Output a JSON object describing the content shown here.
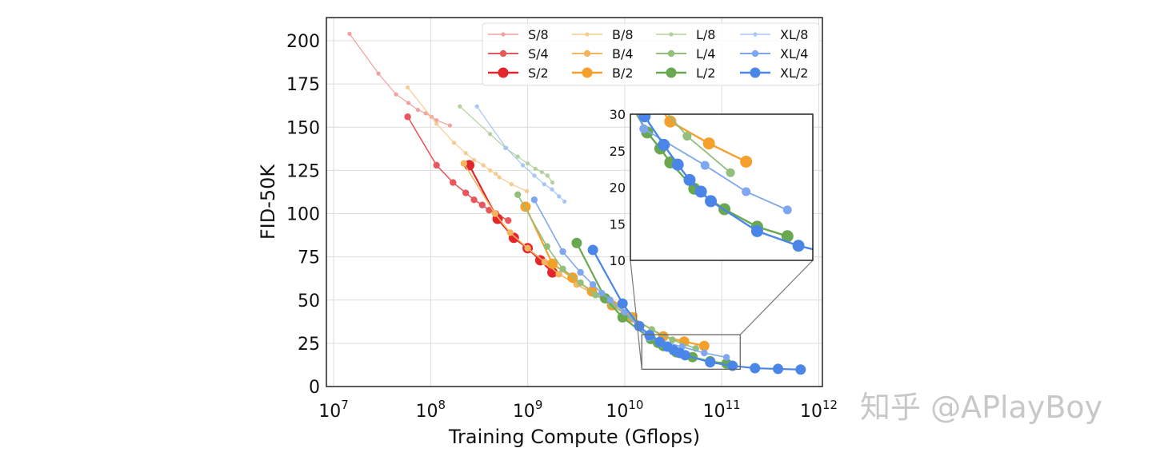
{
  "chart_data": {
    "type": "line",
    "title": "",
    "xlabel": "Training Compute (Gflops)",
    "ylabel": "FID-50K",
    "xscale": "log",
    "xlim": [
      10000000.0,
      1000000000000.0
    ],
    "ylim": [
      0,
      212
    ],
    "x_ticks": [
      {
        "base": "10",
        "exp": "7"
      },
      {
        "base": "10",
        "exp": "8"
      },
      {
        "base": "10",
        "exp": "9"
      },
      {
        "base": "10",
        "exp": "10"
      },
      {
        "base": "10",
        "exp": "11"
      },
      {
        "base": "10",
        "exp": "12"
      }
    ],
    "y_ticks": [
      "0",
      "25",
      "50",
      "75",
      "100",
      "125",
      "150",
      "175",
      "200"
    ],
    "grid": true,
    "legend": {
      "placement": "top-right",
      "columns": 4
    },
    "inset": {
      "xlim": [
        15000000000.0,
        155000000000.0
      ],
      "ylim": [
        10,
        30
      ],
      "y_ticks": [
        "10",
        "15",
        "20",
        "25",
        "30"
      ],
      "placement": "right"
    },
    "series": [
      {
        "name": "S/8",
        "color": "#f2a0a0",
        "size": "small",
        "x": [
          14600000.0,
          29000000.0,
          44000000.0,
          59000000.0,
          74000000.0,
          89000000.0,
          102000000.0,
          115000000.0,
          158000000.0
        ],
        "y": [
          204,
          181,
          169,
          164,
          160,
          158,
          156,
          154,
          151
        ]
      },
      {
        "name": "S/4",
        "color": "#e8575c",
        "size": "medium",
        "x": [
          58000000.0,
          115000000.0,
          170000000.0,
          230000000.0,
          280000000.0,
          340000000.0,
          400000000.0,
          470000000.0,
          630000000.0
        ],
        "y": [
          156,
          128,
          118,
          112,
          108,
          105,
          102,
          100,
          96
        ]
      },
      {
        "name": "S/2",
        "color": "#e3262c",
        "size": "large",
        "x": [
          250000000.0,
          490000000.0,
          720000000.0,
          1000000000.0,
          1350000000.0,
          1800000000.0
        ],
        "y": [
          128,
          97,
          86,
          80,
          73,
          66
        ]
      },
      {
        "name": "B/8",
        "color": "#f6cb92",
        "size": "small",
        "x": [
          58000000.0,
          115000000.0,
          174000000.0,
          230000000.0,
          280000000.0,
          350000000.0,
          410000000.0,
          470000000.0,
          510000000.0,
          680000000.0,
          980000000.0
        ],
        "y": [
          173,
          152,
          141,
          135,
          131,
          128,
          125,
          123,
          121,
          117,
          113
        ]
      },
      {
        "name": "B/4",
        "color": "#f5b45e",
        "size": "medium",
        "x": [
          220000000.0,
          460000000.0,
          660000000.0,
          1000000000.0,
          1500000000.0,
          2100000000.0,
          3200000000.0,
          5000000000.0,
          8100000000.0,
          12600000000.0
        ],
        "y": [
          129,
          100,
          89,
          80,
          72,
          65,
          59,
          53,
          47,
          41
        ]
      },
      {
        "name": "B/2",
        "color": "#f5a02c",
        "size": "large",
        "x": [
          950000000.0,
          1800000000.0,
          2900000000.0,
          4600000000.0,
          7400000000.0,
          11700000000.0,
          25000000000.0,
          41000000000.0,
          66000000000.0
        ],
        "y": [
          104,
          71,
          63,
          55,
          47,
          40,
          29,
          26,
          23.5
        ]
      },
      {
        "name": "L/8",
        "color": "#b3d19e",
        "size": "small",
        "x": [
          200000000.0,
          410000000.0,
          590000000.0,
          790000000.0,
          1000000000.0,
          1200000000.0,
          1400000000.0,
          1600000000.0,
          1800000000.0
        ],
        "y": [
          162,
          146,
          138,
          133,
          129,
          126,
          124,
          122,
          118
        ]
      },
      {
        "name": "L/4",
        "color": "#93bf7c",
        "size": "medium",
        "x": [
          790000000.0,
          1580000000.0,
          2300000000.0,
          3500000000.0,
          5000000000.0,
          7400000000.0,
          11700000000.0,
          19000000000.0,
          31000000000.0,
          54000000000.0
        ],
        "y": [
          111,
          81,
          68,
          60,
          53,
          47,
          40,
          33,
          27,
          22
        ]
      },
      {
        "name": "L/2",
        "color": "#6aa84f",
        "size": "large",
        "x": [
          3200000000.0,
          6300000000.0,
          9500000000.0,
          18600000000.0,
          22000000000.0,
          25000000000.0,
          34000000000.0,
          50000000000.0,
          76000000000.0,
          112000000000.0
        ],
        "y": [
          83,
          51,
          40,
          27.5,
          25.3,
          23.4,
          19.8,
          17,
          14.6,
          13.3
        ]
      },
      {
        "name": "XL/8",
        "color": "#a8c5f5",
        "size": "small",
        "x": [
          300000000.0,
          600000000.0,
          890000000.0,
          1170000000.0,
          1480000000.0,
          1780000000.0,
          2100000000.0,
          2400000000.0
        ],
        "y": [
          162,
          138,
          128,
          122,
          117,
          114,
          110,
          107
        ]
      },
      {
        "name": "XL/4",
        "color": "#7ea7f0",
        "size": "medium",
        "x": [
          1170000000.0,
          2300000000.0,
          3500000000.0,
          4700000000.0,
          5800000000.0,
          7100000000.0,
          10000000000.0,
          17800000000.0,
          39000000000.0,
          66000000000.0,
          112000000000.0
        ],
        "y": [
          108,
          78,
          66,
          59,
          54,
          50,
          43,
          28,
          23,
          19.4,
          16.9
        ]
      },
      {
        "name": "XL/2",
        "color": "#4a86e8",
        "size": "large",
        "x": [
          4700000000.0,
          9500000000.0,
          14100000000.0,
          18000000000.0,
          23000000000.0,
          27500000000.0,
          32000000000.0,
          37000000000.0,
          42000000000.0,
          76000000000.0,
          129000000000.0,
          220000000000.0,
          380000000000.0,
          650000000000.0
        ],
        "y": [
          79,
          48,
          35,
          29.7,
          25.8,
          23.1,
          21,
          19.4,
          18.1,
          14,
          12,
          10.6,
          10.2,
          9.8
        ]
      }
    ]
  },
  "watermark": "知乎 @APlayBoy"
}
